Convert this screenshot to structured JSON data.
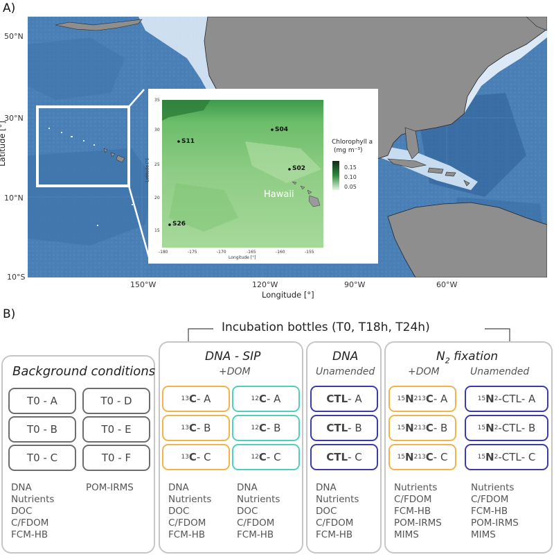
{
  "panel_a": {
    "label": "A)",
    "x_axis_title": "Longitude [°]",
    "y_axis_title": "Latitude [°]",
    "x_ticks": [
      "150°W",
      "120°W",
      "90°W",
      "60°W"
    ],
    "y_ticks": [
      "50°N",
      "30°N",
      "10°N",
      "10°S"
    ],
    "colors": {
      "ocean": "#4a7fb5",
      "ocean_dark": "#2f5f97",
      "land": "#8e8e8e",
      "shelf": "#dbe9f6",
      "highlight_box": "#ffffff"
    },
    "inset": {
      "x_axis_title": "Longitude [°]",
      "y_axis_title": "Latitude [°]",
      "x_ticks": [
        "-180",
        "-175",
        "-170",
        "-165",
        "-160",
        "-155"
      ],
      "y_ticks": [
        "35",
        "30",
        "25",
        "20",
        "15"
      ],
      "region_label": "Hawaii",
      "stations": [
        {
          "name": "S11",
          "lon": -178.5,
          "lat": 28.5
        },
        {
          "name": "S04",
          "lon": -162.0,
          "lat": 30.2
        },
        {
          "name": "S02",
          "lon": -157.7,
          "lat": 24.4
        },
        {
          "name": "S26",
          "lon": -179.2,
          "lat": 15.8
        }
      ],
      "legend": {
        "title_line1": "Chlorophyll a",
        "title_line2": "(mg m⁻³)",
        "ticks": [
          "0.15",
          "0.10",
          "0.05"
        ],
        "color_high": "#0d2b14",
        "color_mid": "#2e8b3d",
        "color_low": "#e8f5e2"
      }
    }
  },
  "panel_b": {
    "label": "B)",
    "incubation_label": "Incubation bottles (T0, T18h, T24h)",
    "background": {
      "title": "Background conditions",
      "bottles_left": [
        "T0 - A",
        "T0 - B",
        "T0 - C"
      ],
      "bottles_right": [
        "T0 - D",
        "T0 - E",
        "T0 - F"
      ],
      "measurements_left": [
        "DNA",
        "Nutrients",
        "DOC",
        "C/FDOM",
        "FCM-HB"
      ],
      "measurements_right": [
        "POM-IRMS"
      ]
    },
    "dna_sip": {
      "title": "DNA - SIP",
      "subtitle": "+DOM",
      "c13_mass": "13",
      "c12_mass": "12",
      "element": "C",
      "suffixes": [
        " - A",
        " - B",
        " - C"
      ],
      "measurements_left": [
        "DNA",
        "Nutrients",
        "DOC",
        "C/FDOM",
        "FCM-HB"
      ],
      "measurements_right": [
        "DNA",
        "Nutrients",
        "DOC",
        "C/FDOM",
        "FCM-HB"
      ]
    },
    "dna": {
      "title": "DNA",
      "subtitle": "Unamended",
      "ctl": "CTL",
      "suffixes": [
        " - A",
        " - B",
        " - C"
      ],
      "measurements": [
        "DNA",
        "Nutrients",
        "DOC",
        "C/FDOM",
        "FCM-HB"
      ]
    },
    "n2_fixation": {
      "title_main": "N",
      "title_sub": "2",
      "title_rest": " fixation",
      "sub_left": "+DOM",
      "sub_right": "Unamended",
      "n_mass": "15",
      "n_elem": "N",
      "n_count": "2",
      "c_mass": "13",
      "c_elem": "C",
      "ctl_dash": "-CTL",
      "suffixes": [
        " - A",
        " - B",
        " - C"
      ],
      "measurements_left": [
        "Nutrients",
        "C/FDOM",
        "FCM-HB",
        "POM-IRMS",
        "MIMS"
      ],
      "measurements_right": [
        "Nutrients",
        "C/FDOM",
        "FCM-HB",
        "POM-IRMS",
        "MIMS"
      ]
    }
  }
}
